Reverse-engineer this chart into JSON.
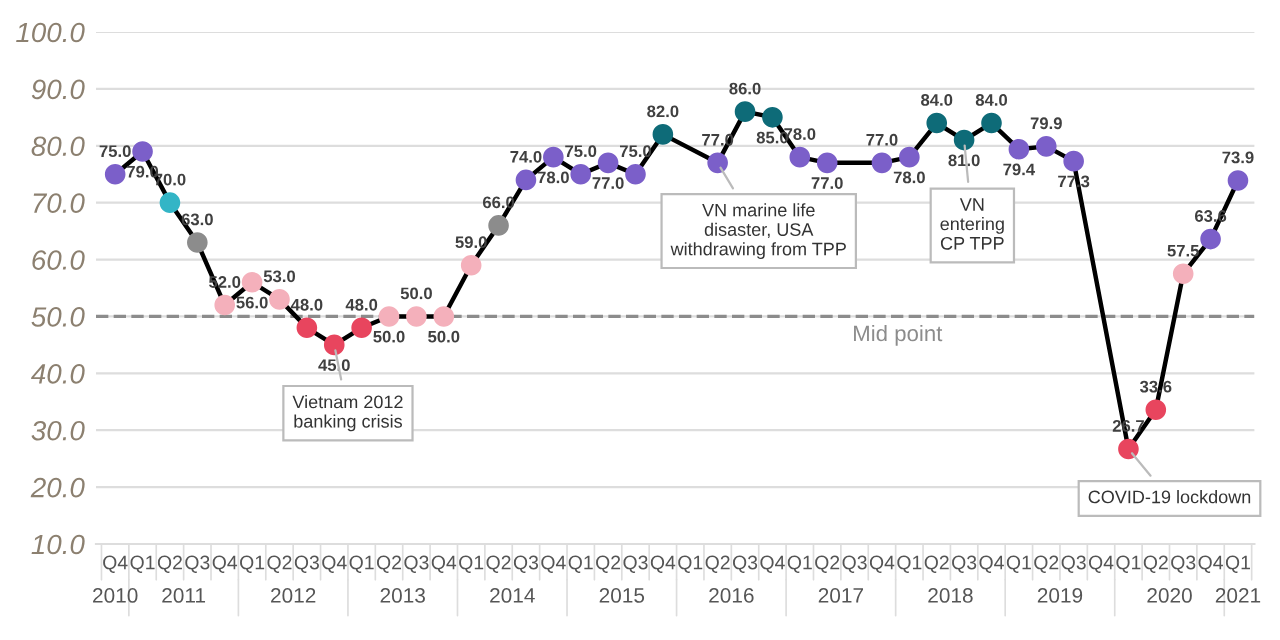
{
  "chart_data": {
    "type": "line",
    "categories": [
      "Q4",
      "Q1",
      "Q2",
      "Q3",
      "Q4",
      "Q1",
      "Q2",
      "Q3",
      "Q4",
      "Q1",
      "Q2",
      "Q3",
      "Q4",
      "Q1",
      "Q2",
      "Q3",
      "Q4",
      "Q1",
      "Q2",
      "Q3",
      "Q4",
      "Q1",
      "Q2",
      "Q3",
      "Q4",
      "Q1",
      "Q2",
      "Q3",
      "Q4",
      "Q1",
      "Q2",
      "Q3",
      "Q4",
      "Q1",
      "Q2",
      "Q3",
      "Q4",
      "Q1",
      "Q2",
      "Q3",
      "Q4",
      "Q1"
    ],
    "series": [
      {
        "color": "#000000",
        "values": [
          75.0,
          79.0,
          70.0,
          63.0,
          52.0,
          56.0,
          53.0,
          48.0,
          45.0,
          48.0,
          50.0,
          50.0,
          50.0,
          59.0,
          66.0,
          74.0,
          78.0,
          75.0,
          77.0,
          75.0,
          82.0,
          null,
          77.0,
          86.0,
          85.0,
          78.0,
          77.0,
          null,
          77.0,
          78.0,
          84.0,
          81.0,
          84.0,
          79.4,
          79.9,
          77.3,
          null,
          26.7,
          33.6,
          57.5,
          63.6,
          73.9
        ],
        "colors": [
          "#7b5fc9",
          "#7b5fc9",
          "#33b5c6",
          "#8c8c8c",
          "#f4b0bb",
          "#f4b0bb",
          "#f4b0bb",
          "#e8455e",
          "#e8455e",
          "#e8455e",
          "#f4b0bb",
          "#f4b0bb",
          "#f4b0bb",
          "#f4b0bb",
          "#8c8c8c",
          "#7b5fc9",
          "#7b5fc9",
          "#7b5fc9",
          "#7b5fc9",
          "#7b5fc9",
          "#0e6b78",
          null,
          "#7b5fc9",
          "#0e6b78",
          "#0e6b78",
          "#7b5fc9",
          "#7b5fc9",
          null,
          "#7b5fc9",
          "#7b5fc9",
          "#0e6b78",
          "#0e6b78",
          "#0e6b78",
          "#7b5fc9",
          "#7b5fc9",
          "#7b5fc9",
          null,
          "#e8455e",
          "#e8455e",
          "#f4b0bb",
          "#7b5fc9",
          "#7b5fc9"
        ],
        "value_labels": [
          "75.0",
          "79.0",
          "70.0",
          "63.0",
          "52.0",
          "56.0",
          "53.0",
          "48.0",
          "45.0",
          "48.0",
          "50.0",
          "50.0",
          "50.0",
          "59.0",
          "66.0",
          "74.0",
          "78.0",
          "75.0",
          "77.0",
          "75.0",
          "82.0",
          null,
          "77.0",
          "86.0",
          "85.0",
          "78.0",
          "77.0",
          null,
          "77.0",
          "78.0",
          "84.0",
          "81.0",
          "84.0",
          "79.4",
          "79.9",
          "77.3",
          null,
          "26.7",
          "33.6",
          "57.5",
          "63.6",
          "73.9"
        ]
      }
    ],
    "ylim": [
      10,
      100
    ],
    "yticks": [
      {
        "value": 10,
        "label": "10.0"
      },
      {
        "value": 20,
        "label": "20.0"
      },
      {
        "value": 30,
        "label": "30.0"
      },
      {
        "value": 40,
        "label": "40.0"
      },
      {
        "value": 50,
        "label": "50.0"
      },
      {
        "value": 60,
        "label": "60.0"
      },
      {
        "value": 70,
        "label": "70.0"
      },
      {
        "value": 80,
        "label": "80.0"
      },
      {
        "value": 90,
        "label": "90.0"
      },
      {
        "value": 100,
        "label": "100.0"
      }
    ],
    "grid": "y",
    "marker": "circle",
    "line_style": "solid",
    "ref_lines": [
      {
        "axis": "y",
        "value": 50,
        "label": "Mid point",
        "color": "#8c8c8c",
        "line_style": "dashed"
      }
    ],
    "annotations": [
      "2010",
      "2011",
      "2012",
      "2013",
      "2014",
      "2015",
      "2016",
      "2017",
      "2018",
      "2019",
      "2020",
      "2021",
      {
        "text": "Vietnam 2012\nbanking crisis",
        "y": 45.0
      },
      "VN marine life\ndisaster, USA\nwithdrawing from TPP",
      {
        "text": "VN\nentering\nCP TPP",
        "y": 81.0
      },
      "COVID-19 lockdown"
    ]
  }
}
